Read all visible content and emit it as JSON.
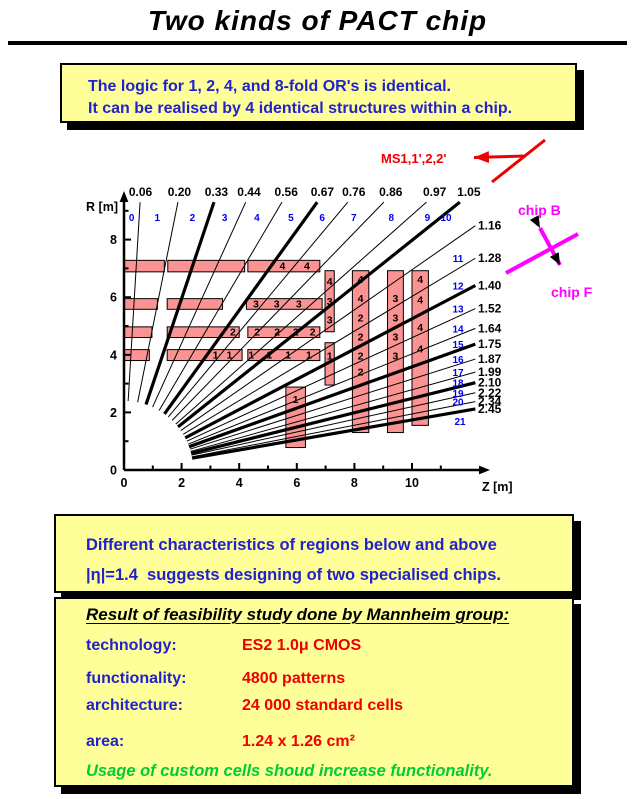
{
  "title": "Two kinds of PACT chip",
  "intro_note": {
    "line1": "The logic for 1, 2, 4, and 8-fold OR's is identical.",
    "line2": "It can be realised by 4 identical structures within a chip."
  },
  "eta_note": {
    "line1": "Different characteristics of regions below and above",
    "line2": "|η|=1.4  suggests designing of two specialised chips."
  },
  "feasibility": {
    "heading": "Result of feasibility study done by Mannheim group:",
    "rows": [
      {
        "label": "technology:",
        "value": "ES2 1.0μ CMOS"
      },
      {
        "label": "functionality:",
        "value": "4800 patterns"
      },
      {
        "label": "architecture:",
        "value": "24 000 standard cells"
      },
      {
        "label": "area:",
        "value": "1.24 x 1.26 cm²"
      }
    ],
    "note": "Usage of custom cells shoud increase functionality."
  },
  "plot": {
    "x_label": "Z [m]",
    "y_label": "R [m]",
    "x_ticks": [
      "0",
      "2",
      "4",
      "6",
      "8",
      "10"
    ],
    "y_ticks": [
      "0",
      "2",
      "4",
      "6",
      "8"
    ],
    "eta_labels": [
      "0.06",
      "0.20",
      "0.33",
      "0.44",
      "0.56",
      "0.67",
      "0.76",
      "0.86",
      "0.97",
      "1.05",
      "1.16",
      "1.28",
      "1.40",
      "1.52",
      "1.64",
      "1.75",
      "1.87",
      "1.99",
      "2.10",
      "2.22",
      "2.34",
      "2.45"
    ],
    "thick_rays": [
      2,
      5,
      9,
      12,
      15,
      18,
      21
    ],
    "sector_numbers": [
      "0",
      "1",
      "2",
      "3",
      "4",
      "5",
      "6",
      "7",
      "8",
      "9",
      "10",
      "11",
      "12",
      "13",
      "14",
      "15",
      "16",
      "17",
      "18",
      "19",
      "20",
      "21"
    ],
    "annotations": {
      "ms": "MS1,1',2,2'",
      "chip_b": "chip B",
      "chip_f": "chip F"
    },
    "barrel_rows": [
      {
        "r0": 6.88,
        "r1": 7.28,
        "segments": [
          [
            0,
            1.4
          ],
          [
            1.52,
            4.19
          ],
          [
            4.3,
            6.8
          ]
        ],
        "cells": [
          {
            "t": "4",
            "z": 5.5
          },
          {
            "t": "4",
            "z": 6.35
          }
        ]
      },
      {
        "r0": 5.58,
        "r1": 5.95,
        "segments": [
          [
            0,
            1.16
          ],
          [
            1.5,
            3.42
          ],
          [
            4.25,
            6.88
          ]
        ],
        "cells": [
          {
            "t": "3",
            "z": 4.58
          },
          {
            "t": "3",
            "z": 5.3
          },
          {
            "t": "3",
            "z": 6.07
          }
        ]
      },
      {
        "r0": 4.6,
        "r1": 4.97,
        "segments": [
          [
            0,
            0.97
          ],
          [
            1.5,
            4.0
          ],
          [
            4.3,
            6.8
          ]
        ],
        "cells": [
          {
            "t": "2",
            "z": 3.78
          },
          {
            "t": "2",
            "z": 4.62
          },
          {
            "t": "2",
            "z": 5.32
          },
          {
            "t": "2",
            "z": 5.97
          },
          {
            "t": "2",
            "z": 6.55
          }
        ]
      },
      {
        "r0": 3.8,
        "r1": 4.18,
        "segments": [
          [
            0,
            0.88
          ],
          [
            1.5,
            4.1
          ],
          [
            4.3,
            6.8
          ]
        ],
        "cells": [
          {
            "t": "1",
            "z": 3.18
          },
          {
            "t": "1",
            "z": 3.66
          },
          {
            "t": "1",
            "z": 4.42
          },
          {
            "t": "1",
            "z": 5.05
          },
          {
            "t": "1",
            "z": 5.7
          },
          {
            "t": "1",
            "z": 6.42
          }
        ]
      }
    ],
    "endcap_columns": [
      {
        "z0": 6.98,
        "z1": 7.3,
        "r0": 4.8,
        "r1": 6.92,
        "cells": [
          {
            "t": "4",
            "r": 6.55
          },
          {
            "t": "3",
            "r": 5.85
          },
          {
            "t": "3",
            "r": 5.2
          }
        ]
      },
      {
        "z0": 6.98,
        "z1": 7.3,
        "r0": 2.95,
        "r1": 4.42,
        "cells": [
          {
            "t": "1",
            "r": 3.95
          }
        ]
      },
      {
        "z0": 7.93,
        "z1": 8.5,
        "r0": 1.3,
        "r1": 6.92,
        "cells": [
          {
            "t": "4",
            "r": 6.62
          },
          {
            "t": "4",
            "r": 5.95
          },
          {
            "t": "2",
            "r": 5.28
          },
          {
            "t": "2",
            "r": 4.62
          },
          {
            "t": "2",
            "r": 3.95
          },
          {
            "t": "2",
            "r": 3.4
          }
        ]
      },
      {
        "z0": 9.15,
        "z1": 9.7,
        "r0": 1.3,
        "r1": 6.92,
        "cells": [
          {
            "t": "3",
            "r": 5.95
          },
          {
            "t": "3",
            "r": 5.28
          },
          {
            "t": "3",
            "r": 4.62
          },
          {
            "t": "3",
            "r": 3.95
          }
        ]
      },
      {
        "z0": 10.0,
        "z1": 10.57,
        "r0": 1.55,
        "r1": 6.92,
        "cells": [
          {
            "t": "4",
            "r": 6.62
          },
          {
            "t": "4",
            "r": 5.9
          },
          {
            "t": "4",
            "r": 4.95
          },
          {
            "t": "4",
            "r": 4.2
          }
        ]
      },
      {
        "z0": 5.62,
        "z1": 6.3,
        "r0": 0.78,
        "r1": 2.88,
        "cells": [
          {
            "t": "1",
            "r": 2.45
          }
        ]
      }
    ],
    "colors": {
      "box_fill": "#fb9393",
      "ray": "#000000",
      "sector_number": "#0000ee",
      "annotation_red": "#ee0000",
      "annotation_magenta": "#ff00ff"
    }
  },
  "colors": {
    "note_bg": "#ffff99",
    "note_text": "#2222cc",
    "value_red": "#ee0000",
    "note_green": "#00cc33"
  }
}
